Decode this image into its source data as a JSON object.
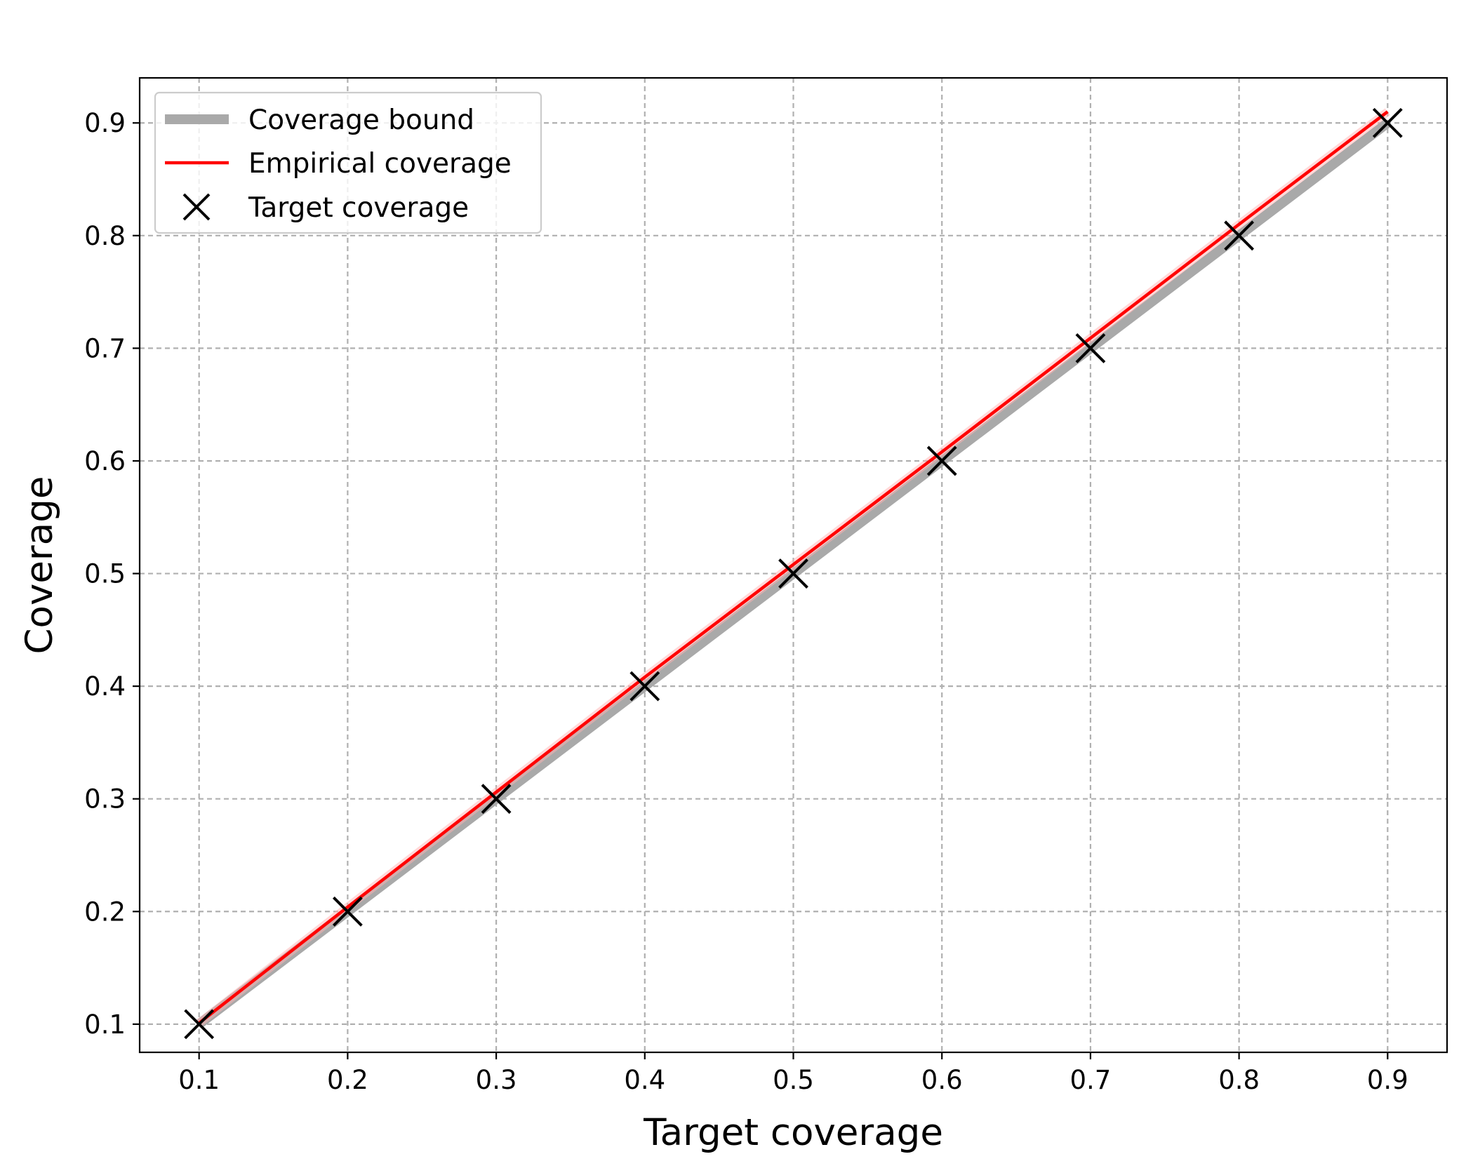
{
  "chart_data": {
    "type": "line",
    "title": "",
    "xlabel": "Target coverage",
    "ylabel": "Coverage",
    "xlim": [
      0.06,
      0.94
    ],
    "ylim": [
      0.075,
      0.94
    ],
    "x_ticks": [
      0.1,
      0.2,
      0.3,
      0.4,
      0.5,
      0.6,
      0.7,
      0.8,
      0.9
    ],
    "y_ticks": [
      0.1,
      0.2,
      0.3,
      0.4,
      0.5,
      0.6,
      0.7,
      0.8,
      0.9
    ],
    "x_tick_labels": [
      "0.1",
      "0.2",
      "0.3",
      "0.4",
      "0.5",
      "0.6",
      "0.7",
      "0.8",
      "0.9"
    ],
    "y_tick_labels": [
      "0.1",
      "0.2",
      "0.3",
      "0.4",
      "0.5",
      "0.6",
      "0.7",
      "0.8",
      "0.9"
    ],
    "grid": true,
    "legend_position": "top-left",
    "series": [
      {
        "name": "Coverage bound",
        "kind": "line",
        "color": "#a9a9a9",
        "x": [
          0.1,
          0.2,
          0.3,
          0.4,
          0.5,
          0.6,
          0.7,
          0.8,
          0.9
        ],
        "y": [
          0.1,
          0.2,
          0.3,
          0.4,
          0.5,
          0.6,
          0.7,
          0.8,
          0.9
        ]
      },
      {
        "name": "Empirical coverage",
        "kind": "line",
        "color": "#ff0000",
        "x": [
          0.1,
          0.2,
          0.3,
          0.4,
          0.5,
          0.6,
          0.7,
          0.8,
          0.9
        ],
        "y": [
          0.101,
          0.204,
          0.306,
          0.408,
          0.508,
          0.608,
          0.709,
          0.81,
          0.91
        ]
      },
      {
        "name": "Target coverage",
        "kind": "marker",
        "marker": "x",
        "color": "#000000",
        "x": [
          0.1,
          0.2,
          0.3,
          0.4,
          0.5,
          0.6,
          0.7,
          0.8,
          0.9
        ],
        "y": [
          0.1,
          0.2,
          0.3,
          0.4,
          0.5,
          0.6,
          0.7,
          0.8,
          0.9
        ]
      }
    ]
  }
}
